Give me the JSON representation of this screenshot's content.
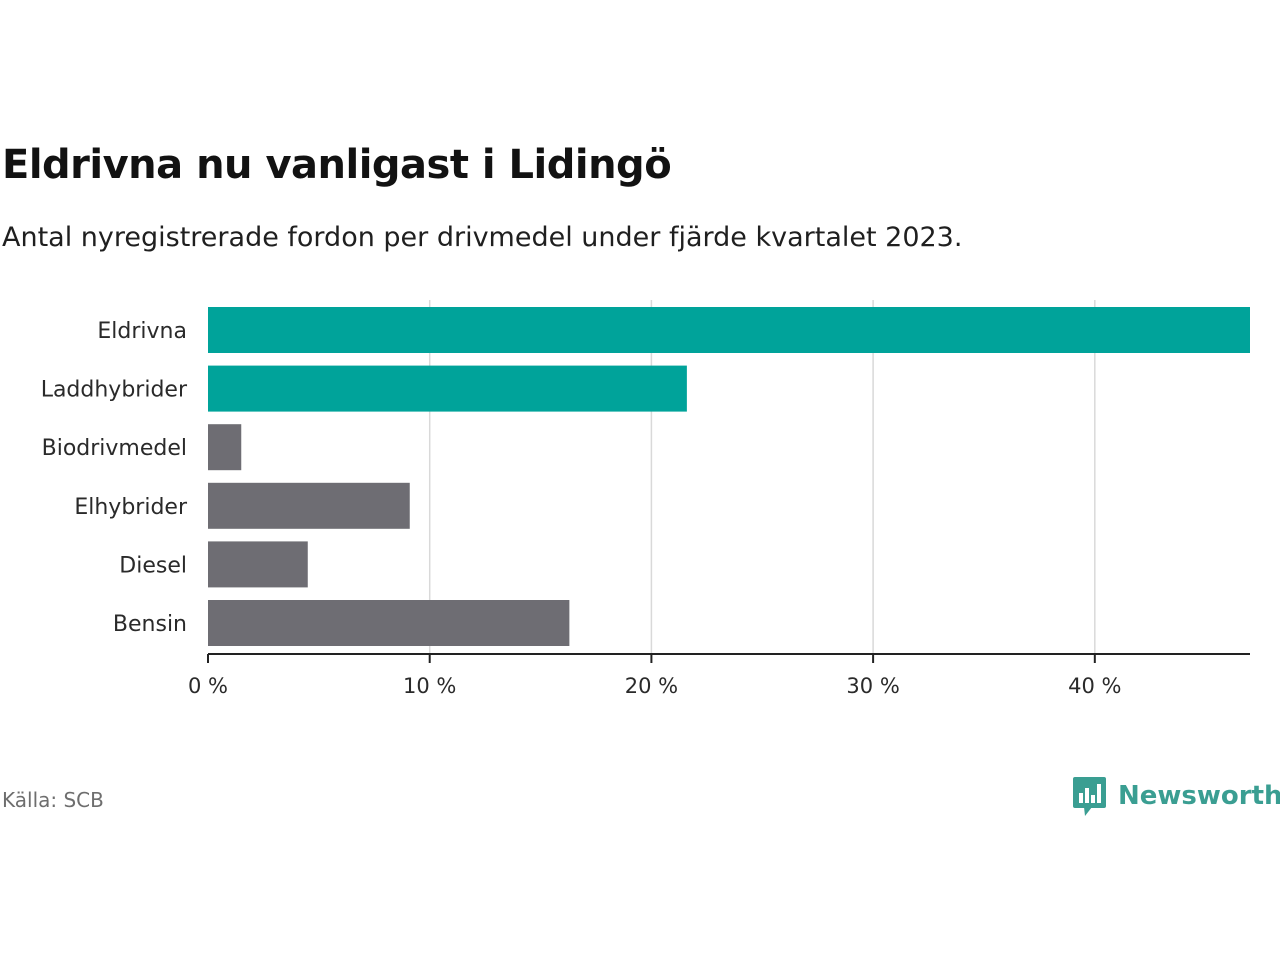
{
  "header": {
    "title": "Eldrivna nu vanligast i Lidingö",
    "subtitle": "Antal nyregistrerade fordon per drivmedel under fjärde kvartalet 2023."
  },
  "footer": {
    "source": "Källa: SCB",
    "brand": "Newsworthy"
  },
  "colors": {
    "highlight": "#00a39a",
    "muted": "#6e6d73",
    "grid": "#d9d9d9",
    "axis": "#222222",
    "text": "#2a2a2a",
    "brand": "#3a9e92"
  },
  "chart_data": {
    "type": "bar",
    "orientation": "horizontal",
    "title": "Eldrivna nu vanligast i Lidingö",
    "subtitle": "Antal nyregistrerade fordon per drivmedel under fjärde kvartalet 2023.",
    "xlabel": "",
    "ylabel": "",
    "xlim": [
      0,
      47
    ],
    "grid": true,
    "ticks": [
      {
        "value": 0,
        "label": "0 %"
      },
      {
        "value": 10,
        "label": "10 %"
      },
      {
        "value": 20,
        "label": "20 %"
      },
      {
        "value": 30,
        "label": "30 %"
      },
      {
        "value": 40,
        "label": "40 %"
      }
    ],
    "categories": [
      "Eldrivna",
      "Laddhybrider",
      "Biodrivmedel",
      "Elhybrider",
      "Diesel",
      "Bensin"
    ],
    "values": [
      47.0,
      21.6,
      1.5,
      9.1,
      4.5,
      16.3
    ],
    "highlighted": [
      true,
      true,
      false,
      false,
      false,
      false
    ]
  }
}
